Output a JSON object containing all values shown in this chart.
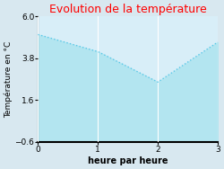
{
  "title": "Evolution de la température",
  "title_color": "#ff0000",
  "xlabel": "heure par heure",
  "ylabel": "Température en °C",
  "x": [
    0,
    1,
    2,
    3
  ],
  "y": [
    5.05,
    4.15,
    2.55,
    4.65
  ],
  "ylim": [
    -0.6,
    6.0
  ],
  "xlim": [
    0,
    3
  ],
  "yticks": [
    -0.6,
    1.6,
    3.8,
    6.0
  ],
  "xticks": [
    0,
    1,
    2,
    3
  ],
  "fill_color": "#b3e5f0",
  "line_color": "#5bc8e8",
  "line_style": "dotted",
  "plot_bg_color": "#d8eef8",
  "fig_bg_color": "#d8e8f0",
  "grid_color": "#ffffff",
  "title_fontsize": 9,
  "label_fontsize": 7,
  "tick_fontsize": 6.5
}
